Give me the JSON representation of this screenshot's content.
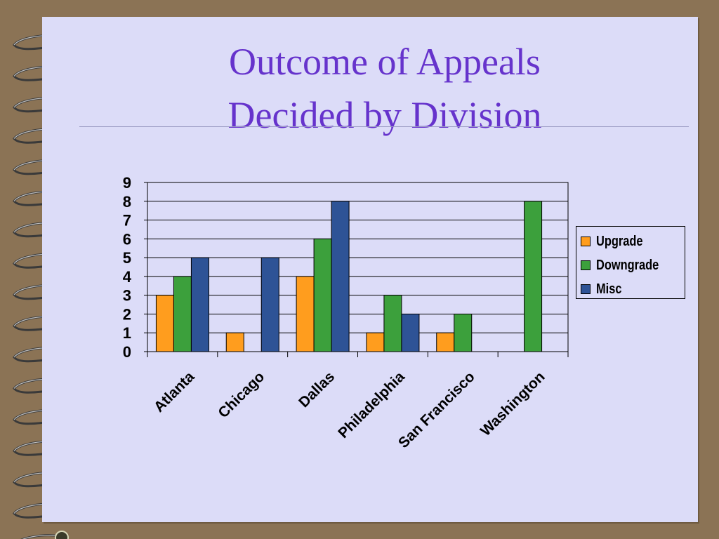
{
  "slide": {
    "title_line1": "Outcome of Appeals",
    "title_line2": "Decided by Division"
  },
  "colors": {
    "title": "#6633cc",
    "background": "#dcdcf8",
    "frame": "#8b7355",
    "upgrade": "#ff9d1e",
    "downgrade": "#3ca03c",
    "misc": "#2e5396"
  },
  "chart_data": {
    "type": "bar",
    "categories": [
      "Atlanta",
      "Chicago",
      "Dallas",
      "Philadelphia",
      "San Francisco",
      "Washington"
    ],
    "series": [
      {
        "name": "Upgrade",
        "values": [
          3,
          1,
          4,
          1,
          1,
          0
        ]
      },
      {
        "name": "Downgrade",
        "values": [
          4,
          0,
          6,
          3,
          2,
          8
        ]
      },
      {
        "name": "Misc",
        "values": [
          5,
          5,
          8,
          2,
          0,
          0
        ]
      }
    ],
    "yticks": [
      "0",
      "1",
      "2",
      "3",
      "4",
      "5",
      "6",
      "7",
      "8",
      "9"
    ],
    "ylim": [
      0,
      9
    ],
    "grid": true,
    "legend_position": "right"
  }
}
